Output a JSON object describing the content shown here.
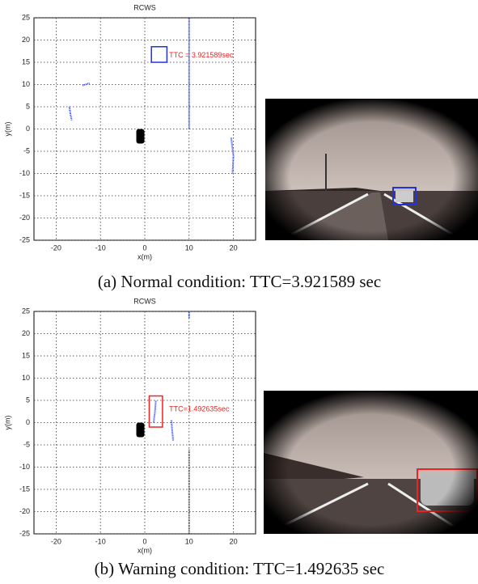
{
  "panels": [
    {
      "plot": {
        "title": "RCWS",
        "xlabel": "x(m)",
        "ylabel": "y(m)",
        "xlim": [
          -25,
          25
        ],
        "ylim": [
          -25,
          25
        ],
        "xticks": [
          -20,
          -10,
          0,
          10,
          20
        ],
        "yticks": [
          25,
          20,
          15,
          10,
          5,
          0,
          -5,
          -10,
          -15,
          -20,
          -25
        ],
        "color": "#2233dd",
        "clusters": [
          {
            "x": [
              10,
              10
            ],
            "y": [
              0,
              25
            ]
          },
          {
            "x": [
              19.5,
              20,
              19.8
            ],
            "y": [
              -2,
              -6,
              -10
            ]
          },
          {
            "x": [
              -17,
              -16.8,
              -16.5
            ],
            "y": [
              5,
              3.5,
              2
            ]
          },
          {
            "x": [
              -14,
              -12.5
            ],
            "y": [
              9.8,
              10.3
            ]
          }
        ],
        "box": {
          "x": [
            1.5,
            5
          ],
          "y": [
            15,
            18.5
          ],
          "color": "#2233dd"
        },
        "annotation": {
          "text": "TTC = 3.921589sec",
          "x": 5.5,
          "y": 16.5,
          "color": "#ee2222"
        }
      },
      "caption": "(a) Normal condition: TTC=3.921589 sec"
    },
    {
      "plot": {
        "title": "RCWS",
        "xlabel": "x(m)",
        "ylabel": "y(m)",
        "xlim": [
          -25,
          25
        ],
        "ylim": [
          -25,
          25
        ],
        "xticks": [
          -20,
          -10,
          0,
          10,
          20
        ],
        "yticks": [
          25,
          20,
          15,
          10,
          5,
          0,
          -5,
          -10,
          -15,
          -20,
          -25
        ],
        "color": "#2233dd",
        "clusters": [
          {
            "x": [
              10,
              10
            ],
            "y": [
              -25,
              -6
            ]
          },
          {
            "x": [
              10,
              10
            ],
            "y": [
              23.5,
              25
            ]
          },
          {
            "x": [
              2,
              2.3,
              2.5
            ],
            "y": [
              0,
              2.5,
              5
            ]
          },
          {
            "x": [
              6,
              6.2,
              6.4
            ],
            "y": [
              0.5,
              -2,
              -4
            ]
          }
        ],
        "box": {
          "x": [
            1,
            4
          ],
          "y": [
            -1,
            6
          ],
          "color": "#ee2222"
        },
        "annotation": {
          "text": "TTC=1.492635sec",
          "x": 5.5,
          "y": 3,
          "color": "#ee2222"
        }
      },
      "caption": "(b) Warning condition: TTC=1.492635 sec"
    }
  ]
}
